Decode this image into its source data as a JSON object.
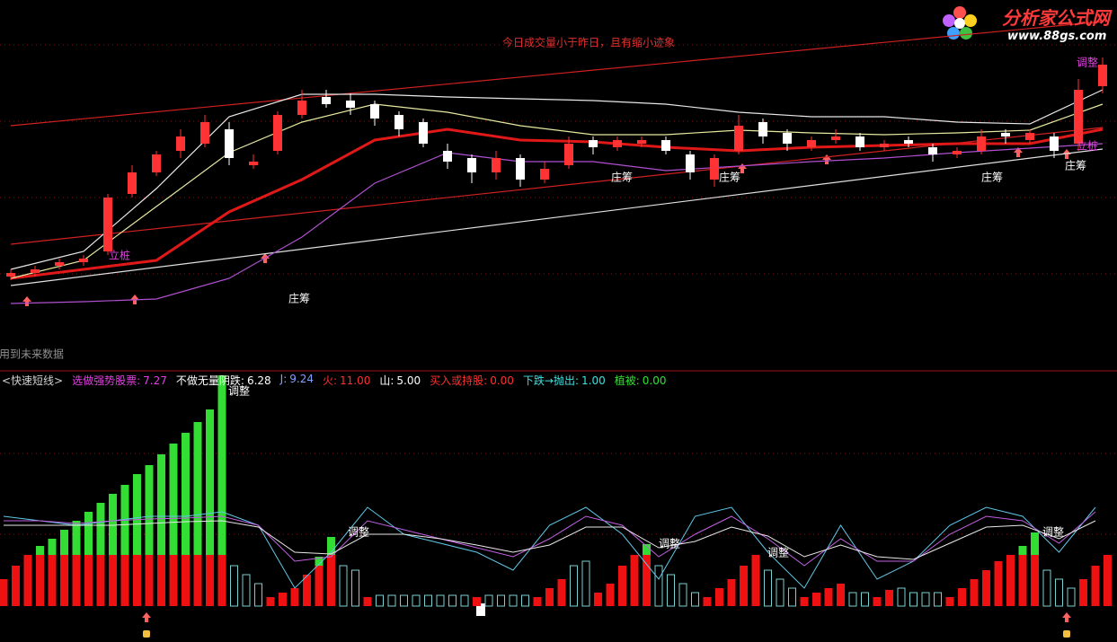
{
  "header": {
    "logo": "分析家公式网",
    "url": "www.88gs.com"
  },
  "chart_data": [
    {
      "type": "candlestick",
      "open": [
        23,
        24,
        26,
        27,
        30,
        46,
        52,
        58,
        60,
        64,
        54,
        58,
        68,
        73,
        72,
        71,
        68,
        66,
        58,
        56,
        52,
        56,
        50,
        54,
        61,
        59,
        60,
        61,
        57,
        50,
        58,
        66,
        63,
        59,
        61,
        62,
        59,
        61,
        59,
        57,
        58,
        63,
        61,
        62,
        60,
        76
      ],
      "high": [
        25,
        26,
        28,
        29,
        46,
        54,
        58,
        64,
        68,
        66,
        57,
        69,
        75,
        75,
        74,
        72,
        69,
        67,
        60,
        57,
        58,
        57,
        55,
        62,
        62,
        62,
        62,
        62,
        58,
        57,
        68,
        67,
        64,
        62,
        64,
        63,
        61,
        62,
        60,
        59,
        64,
        64,
        64,
        63,
        78,
        84
      ],
      "low": [
        22,
        23,
        25,
        26,
        29,
        45,
        51,
        56,
        59,
        54,
        53,
        57,
        67,
        70,
        68,
        65,
        62,
        59,
        53,
        49,
        50,
        48,
        49,
        53,
        57,
        58,
        59,
        57,
        50,
        48,
        57,
        60,
        58,
        58,
        60,
        58,
        58,
        59,
        55,
        56,
        57,
        60,
        60,
        56,
        58,
        74
      ],
      "close": [
        24,
        25,
        27,
        28,
        45,
        52,
        57,
        62,
        66,
        56,
        55,
        68,
        72,
        71,
        70,
        67,
        64,
        60,
        55,
        52,
        56,
        50,
        53,
        60,
        59,
        61,
        61,
        58,
        52,
        56,
        65,
        62,
        60,
        61,
        62,
        59,
        60,
        60,
        57,
        58,
        62,
        62,
        63,
        58,
        75,
        82
      ],
      "up_color": "#ff3333",
      "down_color": "#ffffff",
      "ylim": [
        0,
        100
      ],
      "ma_x": [
        0,
        3,
        6,
        9,
        12,
        15,
        18,
        21,
        24,
        27,
        30,
        33,
        36,
        39,
        42,
        45
      ],
      "series": [
        {
          "color": "#e01818",
          "values": [
            22.5,
            25,
            27.5,
            41,
            50,
            61,
            64,
            61,
            60.5,
            59,
            58,
            59,
            59.5,
            60,
            60,
            64
          ]
        },
        {
          "color": "#b050d0",
          "values": [
            15.5,
            16,
            16.75,
            22.5,
            34,
            49,
            57.5,
            55,
            55,
            52.5,
            53.75,
            55,
            56,
            57.5,
            58.75,
            60
          ]
        },
        {
          "color": "#e8e8e8",
          "values": [
            25,
            30,
            47.5,
            67.5,
            73.75,
            73.75,
            73,
            72.5,
            72,
            71,
            68.75,
            67.5,
            67.5,
            66,
            65.5,
            75
          ]
        },
        {
          "color": "#e8e8a0",
          "values": [
            22.5,
            27.5,
            42.5,
            57.5,
            66,
            71,
            68.75,
            65,
            62.5,
            62.5,
            63.75,
            63,
            62.5,
            63,
            63.75,
            71
          ]
        }
      ],
      "trend_x": [
        0,
        45
      ],
      "trendlines": [
        {
          "color": "#d02020",
          "values": [
            65,
            94
          ]
        },
        {
          "color": "#d02020",
          "values": [
            32,
            64.5
          ]
        },
        {
          "color": "#e0e0e0",
          "values": [
            20.5,
            58.5
          ]
        }
      ],
      "annotations": [
        {
          "text": "今日成交量小于昨日，且有缩小迹象",
          "color": "#e03030"
        },
        {
          "text": "庄筹",
          "color": "#ffffff"
        },
        {
          "text": "庄筹",
          "color": "#ffffff"
        },
        {
          "text": "庄筹",
          "color": "#ffffff"
        },
        {
          "text": "庄筹",
          "color": "#ffffff"
        },
        {
          "text": "庄筹",
          "color": "#ffffff"
        },
        {
          "text": "立桩",
          "color": "#e040e0"
        },
        {
          "text": "立桩",
          "color": "#e040e0"
        },
        {
          "text": "调整",
          "color": "#e040e0"
        },
        {
          "text": "用到未来数据",
          "color": "#909090"
        }
      ]
    },
    {
      "type": "bar",
      "legend": [
        {
          "label": "<快速短线>",
          "color": "#d0d0d0"
        },
        {
          "label": "选做强势股票:",
          "value": "7.27",
          "color": "#e040e0"
        },
        {
          "label": "不做无量阴跌:",
          "value": "6.28",
          "color": "#ffffff"
        },
        {
          "label": "J:",
          "value": "9.24",
          "color": "#80a0ff"
        },
        {
          "label": "火:",
          "value": "11.00",
          "color": "#ff3030"
        },
        {
          "label": "山:",
          "value": "5.00",
          "color": "#ffffff"
        },
        {
          "label": "买入或持股:",
          "value": "0.00",
          "color": "#ff3030"
        },
        {
          "label": "下跌→抛出:",
          "value": "1.00",
          "color": "#40e0e0"
        },
        {
          "label": "植被:",
          "value": "0.00",
          "color": "#30e030"
        }
      ],
      "ylim": [
        0,
        260
      ],
      "red": [
        30,
        45,
        57,
        57,
        57,
        57,
        57,
        57,
        57,
        57,
        57,
        57,
        57,
        57,
        57,
        57,
        57,
        57,
        57,
        0,
        0,
        0,
        10,
        15,
        20,
        35,
        45,
        57,
        0,
        0,
        10,
        0,
        0,
        0,
        0,
        0,
        0,
        0,
        0,
        10,
        0,
        0,
        0,
        0,
        10,
        20,
        30,
        0,
        0,
        15,
        25,
        45,
        57,
        57,
        0,
        0,
        0,
        0,
        10,
        20,
        30,
        45,
        57,
        0,
        0,
        0,
        10,
        15,
        20,
        25,
        0,
        0,
        10,
        18,
        0,
        0,
        0,
        0,
        10,
        20,
        30,
        40,
        50,
        57,
        57,
        57,
        0,
        0,
        0,
        30,
        45,
        57
      ],
      "green": [
        0,
        0,
        0,
        10,
        18,
        28,
        38,
        48,
        58,
        68,
        78,
        90,
        100,
        112,
        124,
        136,
        148,
        162,
        200,
        0,
        0,
        0,
        0,
        0,
        0,
        0,
        10,
        20,
        0,
        0,
        0,
        0,
        0,
        0,
        0,
        0,
        0,
        0,
        0,
        0,
        0,
        0,
        0,
        0,
        0,
        0,
        0,
        0,
        0,
        0,
        0,
        0,
        0,
        12,
        0,
        0,
        0,
        0,
        0,
        0,
        0,
        0,
        0,
        0,
        0,
        0,
        0,
        0,
        0,
        0,
        0,
        0,
        0,
        0,
        0,
        0,
        0,
        0,
        0,
        0,
        0,
        0,
        0,
        0,
        10,
        25,
        0,
        0,
        0,
        0,
        0,
        0
      ],
      "cyan": [
        0,
        0,
        0,
        0,
        0,
        0,
        0,
        0,
        0,
        0,
        0,
        0,
        0,
        0,
        0,
        0,
        0,
        0,
        0,
        45,
        35,
        25,
        0,
        0,
        0,
        0,
        0,
        0,
        45,
        40,
        0,
        12,
        12,
        12,
        12,
        12,
        12,
        12,
        12,
        0,
        12,
        12,
        12,
        12,
        0,
        0,
        0,
        45,
        50,
        0,
        0,
        0,
        0,
        0,
        45,
        35,
        25,
        15,
        0,
        0,
        0,
        0,
        0,
        40,
        30,
        20,
        0,
        0,
        0,
        0,
        15,
        15,
        0,
        0,
        20,
        15,
        15,
        15,
        0,
        0,
        0,
        0,
        0,
        0,
        0,
        0,
        40,
        30,
        20,
        0,
        0,
        0
      ],
      "colors": {
        "red": "#ee1111",
        "green": "#33dd33",
        "cyan": "#7ccfcf"
      },
      "line_x": [
        0,
        3,
        6,
        9,
        12,
        15,
        18,
        21,
        24,
        27,
        30,
        33,
        36,
        39,
        42,
        45,
        48,
        51,
        54,
        57,
        60,
        63,
        66,
        69,
        72,
        75,
        78,
        81,
        84,
        87,
        90
      ],
      "series": [
        {
          "color": "#60c8e8",
          "values": [
            100,
            95,
            90,
            95,
            100,
            100,
            105,
            90,
            20,
            60,
            110,
            80,
            70,
            60,
            40,
            90,
            110,
            80,
            30,
            100,
            110,
            60,
            20,
            90,
            30,
            50,
            90,
            110,
            100,
            60,
            110
          ]
        },
        {
          "color": "#c060e0",
          "values": [
            95,
            95,
            92,
            95,
            97,
            98,
            100,
            90,
            50,
            55,
            95,
            85,
            75,
            65,
            55,
            75,
            100,
            90,
            55,
            80,
            100,
            75,
            45,
            75,
            50,
            50,
            80,
            100,
            95,
            70,
            105
          ]
        },
        {
          "color": "#e8e8e8",
          "values": [
            90,
            90,
            90,
            90,
            92,
            94,
            95,
            88,
            60,
            58,
            80,
            80,
            75,
            68,
            60,
            68,
            88,
            88,
            65,
            72,
            88,
            78,
            55,
            68,
            55,
            52,
            70,
            88,
            90,
            75,
            95
          ]
        }
      ],
      "annotations": [
        {
          "text": "调整",
          "color": "#ffffff"
        },
        {
          "text": "调整",
          "color": "#ffffff"
        },
        {
          "text": "调整",
          "color": "#ffffff"
        },
        {
          "text": "调整",
          "color": "#ffffff"
        },
        {
          "text": "调整",
          "color": "#ffffff"
        }
      ]
    }
  ]
}
